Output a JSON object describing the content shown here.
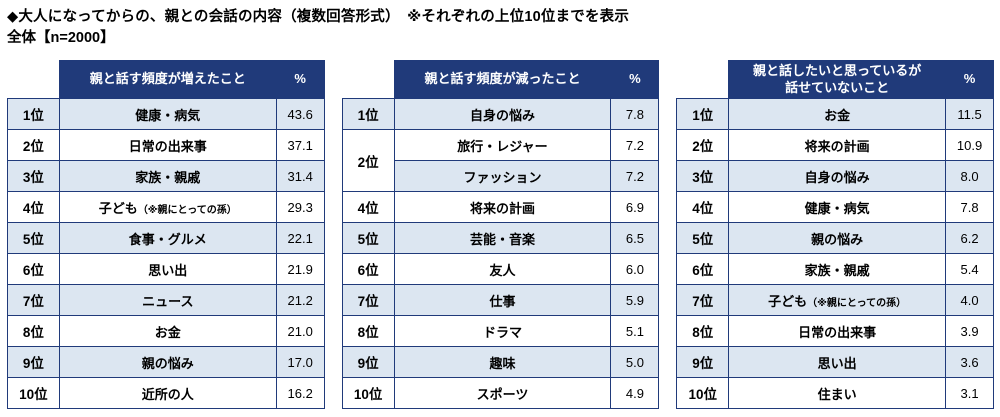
{
  "title": "◆大人になってからの、親との会話の内容（複数回答形式）　※それぞれの上位10位までを表示",
  "subtitle": "全体【n=2000】",
  "colors": {
    "header_bg": "#203A7A",
    "border": "#203A7A",
    "row_alt_bg": "#DCE6F1",
    "header_text": "#FFFFFF"
  },
  "chart_data": [
    {
      "type": "table",
      "title": "親と話す頻度が増えたこと",
      "unit": "%",
      "rows": [
        {
          "rank": "1位",
          "item": "健康・病気",
          "value": "43.6"
        },
        {
          "rank": "2位",
          "item": "日常の出来事",
          "value": "37.1"
        },
        {
          "rank": "3位",
          "item": "家族・親戚",
          "value": "31.4"
        },
        {
          "rank": "4位",
          "item": "子ども",
          "note": "（※親にとっての孫）",
          "value": "29.3"
        },
        {
          "rank": "5位",
          "item": "食事・グルメ",
          "value": "22.1"
        },
        {
          "rank": "6位",
          "item": "思い出",
          "value": "21.9"
        },
        {
          "rank": "7位",
          "item": "ニュース",
          "value": "21.2"
        },
        {
          "rank": "8位",
          "item": "お金",
          "value": "21.0"
        },
        {
          "rank": "9位",
          "item": "親の悩み",
          "value": "17.0"
        },
        {
          "rank": "10位",
          "item": "近所の人",
          "value": "16.2"
        }
      ]
    },
    {
      "type": "table",
      "title": "親と話す頻度が減ったこと",
      "unit": "%",
      "rows": [
        {
          "rank": "1位",
          "item": "自身の悩み",
          "value": "7.8"
        },
        {
          "rank": "2位",
          "rank_rowspan": 2,
          "item": "旅行・レジャー",
          "value": "7.2"
        },
        {
          "item": "ファッション",
          "value": "7.2"
        },
        {
          "rank": "4位",
          "item": "将来の計画",
          "value": "6.9"
        },
        {
          "rank": "5位",
          "item": "芸能・音楽",
          "value": "6.5"
        },
        {
          "rank": "6位",
          "item": "友人",
          "value": "6.0"
        },
        {
          "rank": "7位",
          "item": "仕事",
          "value": "5.9"
        },
        {
          "rank": "8位",
          "item": "ドラマ",
          "value": "5.1"
        },
        {
          "rank": "9位",
          "item": "趣味",
          "value": "5.0"
        },
        {
          "rank": "10位",
          "item": "スポーツ",
          "value": "4.9"
        }
      ]
    },
    {
      "type": "table",
      "title": "親と話したいと思っているが\n話せていないこと",
      "unit": "%",
      "rows": [
        {
          "rank": "1位",
          "item": "お金",
          "value": "11.5"
        },
        {
          "rank": "2位",
          "item": "将来の計画",
          "value": "10.9"
        },
        {
          "rank": "3位",
          "item": "自身の悩み",
          "value": "8.0"
        },
        {
          "rank": "4位",
          "item": "健康・病気",
          "value": "7.8"
        },
        {
          "rank": "5位",
          "item": "親の悩み",
          "value": "6.2"
        },
        {
          "rank": "6位",
          "item": "家族・親戚",
          "value": "5.4"
        },
        {
          "rank": "7位",
          "item": "子ども",
          "note": "（※親にとっての孫）",
          "value": "4.0"
        },
        {
          "rank": "8位",
          "item": "日常の出来事",
          "value": "3.9"
        },
        {
          "rank": "9位",
          "item": "思い出",
          "value": "3.6"
        },
        {
          "rank": "10位",
          "item": "住まい",
          "value": "3.1"
        }
      ]
    }
  ]
}
